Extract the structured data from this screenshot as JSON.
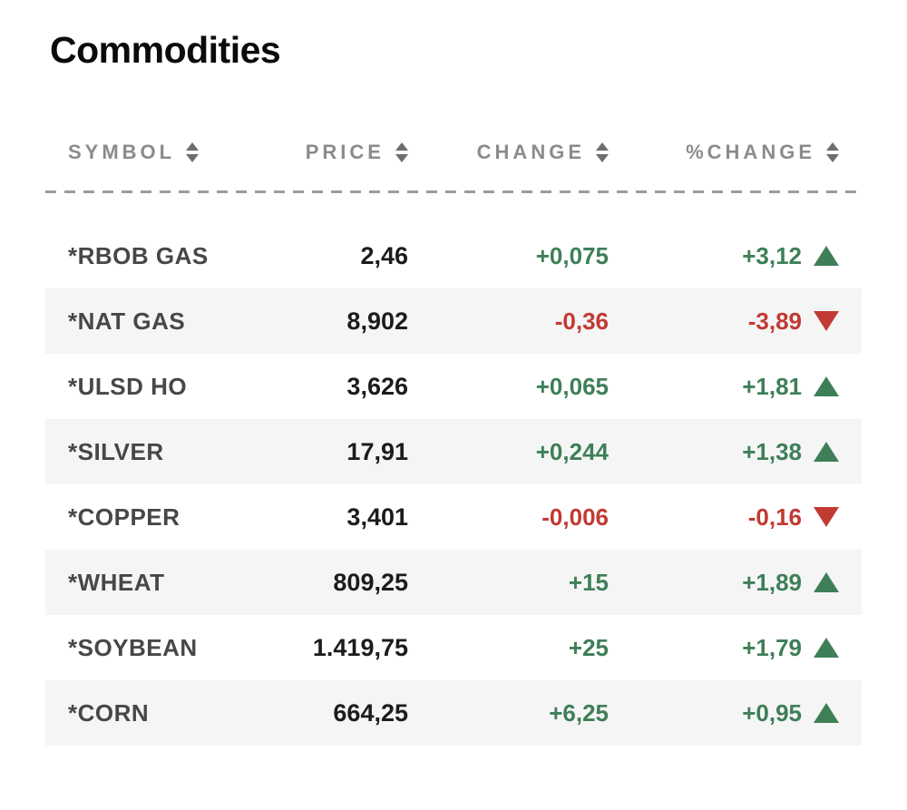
{
  "page": {
    "title": "Commodities"
  },
  "colors": {
    "positive": "#3e7f58",
    "negative": "#c13a33",
    "header_text": "#8b8b8b",
    "sort_arrow": "#6e6e6e",
    "symbol_text": "#474747",
    "price_text": "#1c1c1c",
    "alt_row_bg": "#f5f5f5",
    "divider": "#9c9c9c"
  },
  "icons": {
    "sort": "up-down-stacked-triangles",
    "up": "filled-triangle-up",
    "down": "filled-triangle-down"
  },
  "table": {
    "columns": [
      {
        "key": "symbol",
        "label": "SYMBOL"
      },
      {
        "key": "price",
        "label": "PRICE"
      },
      {
        "key": "change",
        "label": "CHANGE"
      },
      {
        "key": "pct_change",
        "label": "%CHANGE"
      }
    ],
    "rows": [
      {
        "symbol": "*RBOB GAS",
        "price": "2,46",
        "change": "+0,075",
        "pct_change": "+3,12",
        "direction": "up"
      },
      {
        "symbol": "*NAT GAS",
        "price": "8,902",
        "change": "-0,36",
        "pct_change": "-3,89",
        "direction": "down"
      },
      {
        "symbol": "*ULSD HO",
        "price": "3,626",
        "change": "+0,065",
        "pct_change": "+1,81",
        "direction": "up"
      },
      {
        "symbol": "*SILVER",
        "price": "17,91",
        "change": "+0,244",
        "pct_change": "+1,38",
        "direction": "up"
      },
      {
        "symbol": "*COPPER",
        "price": "3,401",
        "change": "-0,006",
        "pct_change": "-0,16",
        "direction": "down"
      },
      {
        "symbol": "*WHEAT",
        "price": "809,25",
        "change": "+15",
        "pct_change": "+1,89",
        "direction": "up"
      },
      {
        "symbol": "*SOYBEAN",
        "price": "1.419,75",
        "change": "+25",
        "pct_change": "+1,79",
        "direction": "up"
      },
      {
        "symbol": "*CORN",
        "price": "664,25",
        "change": "+6,25",
        "pct_change": "+0,95",
        "direction": "up"
      }
    ]
  }
}
